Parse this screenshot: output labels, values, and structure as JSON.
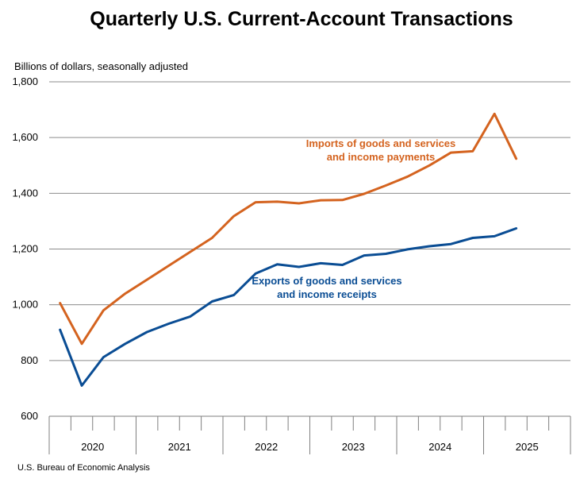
{
  "chart_data": {
    "type": "line",
    "title": "Quarterly U.S. Current-Account Transactions",
    "ylabel": "Billions of dollars, seasonally adjusted",
    "ylim": [
      600,
      1800
    ],
    "yticks": [
      600,
      800,
      1000,
      1200,
      1400,
      1600,
      1800
    ],
    "ytick_labels": [
      "600",
      "800",
      "1,000",
      "1,200",
      "1,400",
      "1,600",
      "1,800"
    ],
    "years": [
      "2020",
      "2021",
      "2022",
      "2023",
      "2024",
      "2025"
    ],
    "quarters": [
      "2020 Q1",
      "2020 Q2",
      "2020 Q3",
      "2020 Q4",
      "2021 Q1",
      "2021 Q2",
      "2021 Q3",
      "2021 Q4",
      "2022 Q1",
      "2022 Q2",
      "2022 Q3",
      "2022 Q4",
      "2023 Q1",
      "2023 Q2",
      "2023 Q3",
      "2023 Q4",
      "2024 Q1",
      "2024 Q2",
      "2024 Q3",
      "2024 Q4",
      "2025 Q1",
      "2025 Q2"
    ],
    "grid": true,
    "series": [
      {
        "name": "Imports of goods and services and income payments",
        "label_lines": [
          "Imports of goods and services",
          "and income payments"
        ],
        "color": "#D4631F",
        "values": [
          1006,
          860,
          980,
          1040,
          1090,
          1140,
          1190,
          1240,
          1318,
          1368,
          1370,
          1364,
          1375,
          1376,
          1398,
          1428,
          1460,
          1500,
          1546,
          1551,
          1685,
          1524
        ]
      },
      {
        "name": "Exports of goods and services and income receipts",
        "label_lines": [
          "Exports of goods and services",
          "and income receipts"
        ],
        "color": "#0A4D94",
        "values": [
          910,
          710,
          812,
          860,
          902,
          932,
          958,
          1012,
          1035,
          1112,
          1145,
          1136,
          1149,
          1143,
          1177,
          1183,
          1199,
          1210,
          1218,
          1240,
          1246,
          1274
        ]
      }
    ]
  },
  "source": "U.S. Bureau of Economic Analysis"
}
